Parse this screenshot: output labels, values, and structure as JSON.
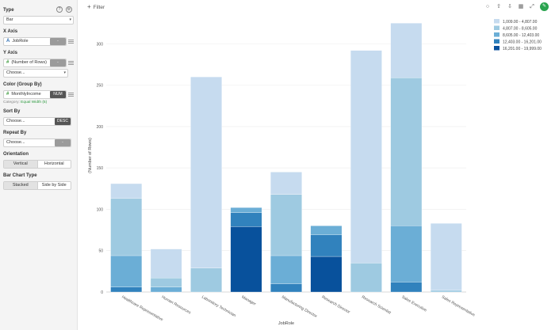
{
  "panel": {
    "type": {
      "label": "Type",
      "value": "Bar"
    },
    "x_axis": {
      "label": "X Axis",
      "value": "JobRole",
      "btn": "-"
    },
    "y_axis": {
      "label": "Y Axis",
      "value": "(Number of Rows)",
      "btn": "-",
      "extra_value": "Choose..."
    },
    "color": {
      "label": "Color (Group By)",
      "value": "MonthlyIncome",
      "btn": "NUM",
      "category_prefix": "Category:",
      "category_value": "Equal Width (5)"
    },
    "sort_by": {
      "label": "Sort By",
      "value": "Choose...",
      "btn": "DESC"
    },
    "repeat_by": {
      "label": "Repeat By",
      "value": "Choose...",
      "btn": "-"
    },
    "orientation": {
      "label": "Orientation",
      "options": [
        "Vertical",
        "Horizontal"
      ],
      "selected": 0
    },
    "bar_chart_type": {
      "label": "Bar Chart Type",
      "options": [
        "Stacked",
        "Side by Side"
      ],
      "selected": 0
    }
  },
  "topbar": {
    "filter_label": "Filter"
  },
  "icons": {
    "help": "question-icon",
    "settings": "gear-icon",
    "comment": "comment-icon",
    "upload": "upload-icon",
    "download": "download-icon",
    "table": "table-icon",
    "expand": "expand-icon",
    "pin": "pin-icon"
  },
  "chart_data": {
    "type": "bar",
    "stacked": true,
    "xlabel": "JobRole",
    "ylabel": "(Number of Rows)",
    "ylim": [
      0,
      330
    ],
    "yticks": [
      0,
      50,
      100,
      150,
      200,
      250,
      300
    ],
    "categories": [
      "Healthcare Representative",
      "Human Resources",
      "Laboratory Technician",
      "Manager",
      "Manufacturing Director",
      "Research Director",
      "Research Scientist",
      "Sales Executive",
      "Sales Representative"
    ],
    "series": [
      {
        "name": "1,009.00 - 4,807.00",
        "color": "#c6dbef",
        "values": [
          18,
          35,
          231,
          0,
          27,
          0,
          257,
          66,
          81
        ]
      },
      {
        "name": "4,807.00 - 8,605.00",
        "color": "#9ecae1",
        "values": [
          69,
          11,
          29,
          0,
          74,
          0,
          35,
          179,
          2
        ]
      },
      {
        "name": "8,605.00 - 12,403.00",
        "color": "#6baed6",
        "values": [
          38,
          6,
          0,
          6,
          34,
          11,
          0,
          68,
          0
        ]
      },
      {
        "name": "12,403.00 - 16,201.00",
        "color": "#3182bd",
        "values": [
          6,
          0,
          0,
          17,
          10,
          26,
          0,
          12,
          0
        ]
      },
      {
        "name": "16,201.00 - 19,999.00",
        "color": "#08519c",
        "values": [
          0,
          0,
          0,
          79,
          0,
          43,
          0,
          0,
          0
        ]
      }
    ],
    "legend_position": "top-right",
    "grid": true
  }
}
